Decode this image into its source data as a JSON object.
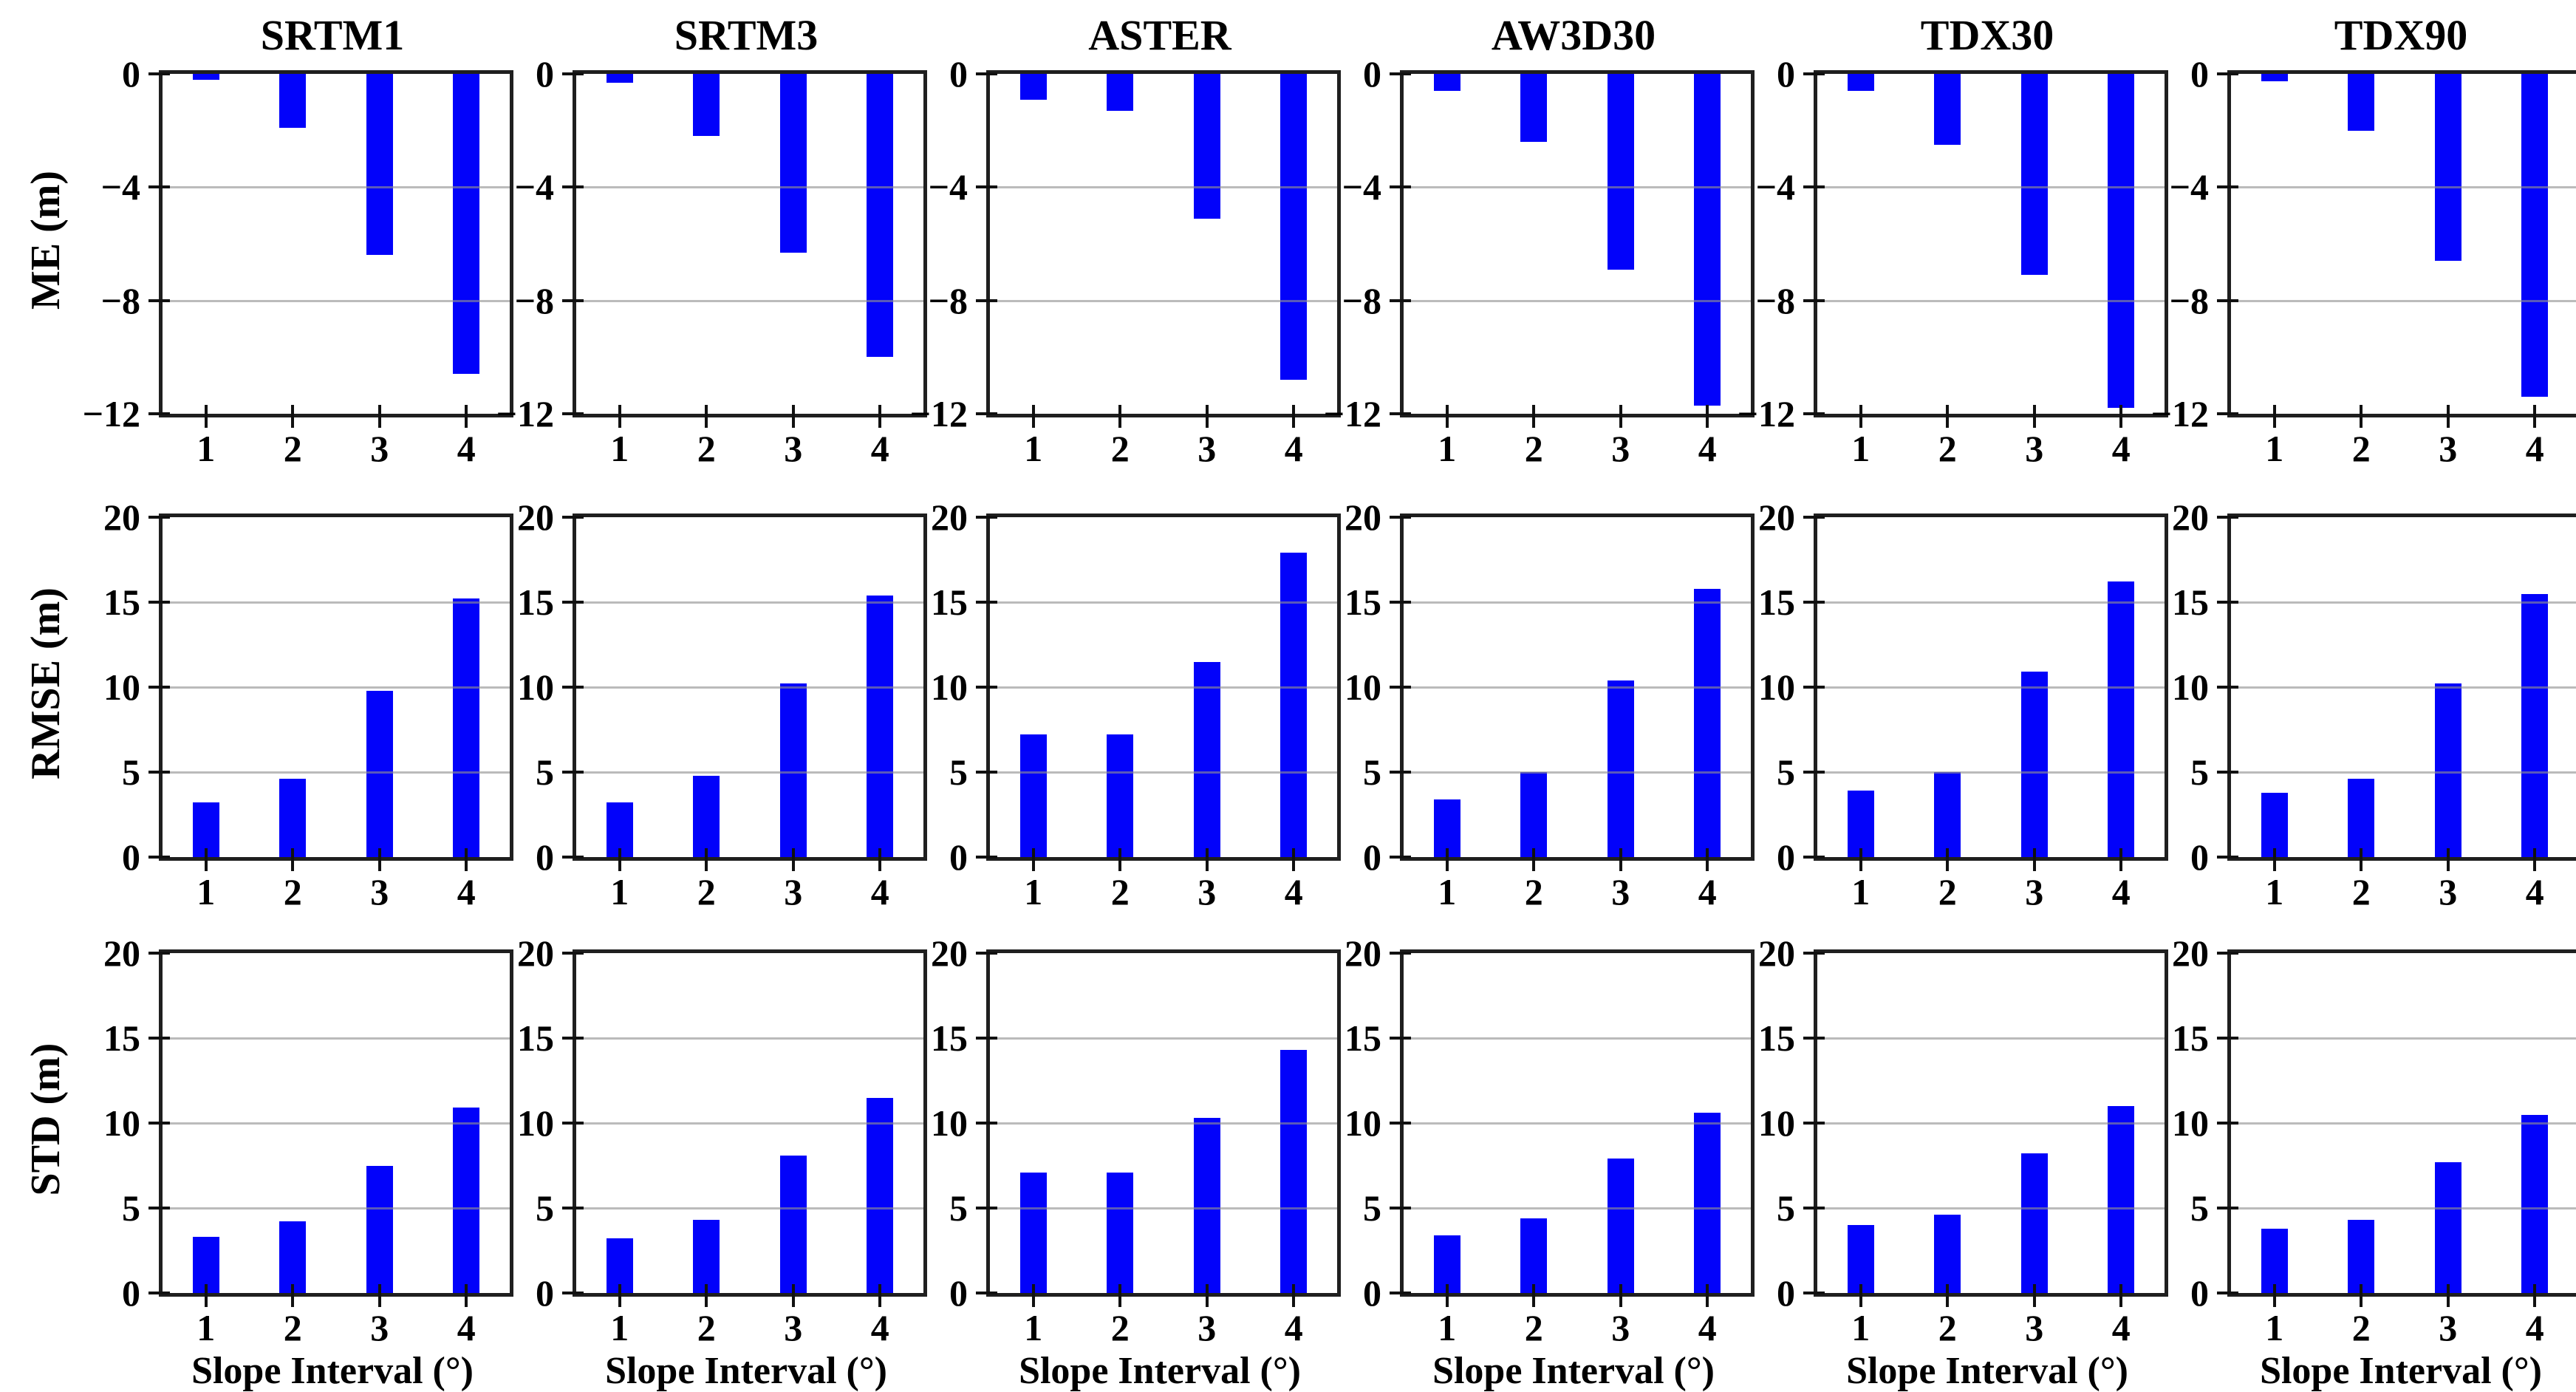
{
  "figure": {
    "background": "#ffffff",
    "bar_color": "#0202fa",
    "grid_color": "#a9a9a9",
    "axis_color": "#1f1f1f",
    "text_color": "#000000",
    "columns": [
      "SRTM1",
      "SRTM3",
      "ASTER",
      "AW3D30",
      "TDX30",
      "TDX90"
    ],
    "row_metrics": [
      "ME (m)",
      "RMSE (m)",
      "STD (m)"
    ],
    "xlabel": "Slope Interval (°)",
    "xticklabels": [
      "1",
      "2",
      "3",
      "4"
    ]
  },
  "chart_data": [
    {
      "type": "bar",
      "metric": "ME",
      "ylabel": "ME (m)",
      "ylim": [
        -12,
        0
      ],
      "yticks": [
        0,
        -4,
        -8,
        -12
      ],
      "yticklabels": [
        "0",
        "−4",
        "−8",
        "−12"
      ],
      "gridlines": [
        -4,
        -8
      ],
      "grid": true,
      "legend": "none",
      "categories": [
        "1",
        "2",
        "3",
        "4"
      ],
      "series": [
        {
          "name": "SRTM1",
          "values": [
            -0.2,
            -1.9,
            -6.4,
            -10.6
          ]
        },
        {
          "name": "SRTM3",
          "values": [
            -0.3,
            -2.2,
            -6.3,
            -10.0
          ]
        },
        {
          "name": "ASTER",
          "values": [
            -0.9,
            -1.3,
            -5.1,
            -10.8
          ]
        },
        {
          "name": "AW3D30",
          "values": [
            -0.6,
            -2.4,
            -6.9,
            -11.7
          ]
        },
        {
          "name": "TDX30",
          "values": [
            -0.6,
            -2.5,
            -7.1,
            -11.8
          ]
        },
        {
          "name": "TDX90",
          "values": [
            -0.25,
            -2.0,
            -6.6,
            -11.4
          ]
        }
      ]
    },
    {
      "type": "bar",
      "metric": "RMSE",
      "ylabel": "RMSE (m)",
      "ylim": [
        0,
        20
      ],
      "yticks": [
        0,
        5,
        10,
        15,
        20
      ],
      "yticklabels": [
        "0",
        "5",
        "10",
        "15",
        "20"
      ],
      "gridlines": [
        5,
        10,
        15
      ],
      "grid": true,
      "legend": "none",
      "categories": [
        "1",
        "2",
        "3",
        "4"
      ],
      "series": [
        {
          "name": "SRTM1",
          "values": [
            3.2,
            4.6,
            9.8,
            15.2
          ]
        },
        {
          "name": "SRTM3",
          "values": [
            3.2,
            4.8,
            10.2,
            15.4
          ]
        },
        {
          "name": "ASTER",
          "values": [
            7.2,
            7.2,
            11.5,
            17.9
          ]
        },
        {
          "name": "AW3D30",
          "values": [
            3.4,
            5.0,
            10.4,
            15.8
          ]
        },
        {
          "name": "TDX30",
          "values": [
            3.9,
            5.0,
            10.9,
            16.2
          ]
        },
        {
          "name": "TDX90",
          "values": [
            3.8,
            4.6,
            10.2,
            15.5
          ]
        }
      ]
    },
    {
      "type": "bar",
      "metric": "STD",
      "ylabel": "STD (m)",
      "ylim": [
        0,
        20
      ],
      "yticks": [
        0,
        5,
        10,
        15,
        20
      ],
      "yticklabels": [
        "0",
        "5",
        "10",
        "15",
        "20"
      ],
      "gridlines": [
        5,
        10,
        15
      ],
      "grid": true,
      "legend": "none",
      "categories": [
        "1",
        "2",
        "3",
        "4"
      ],
      "series": [
        {
          "name": "SRTM1",
          "values": [
            3.3,
            4.2,
            7.5,
            10.9
          ]
        },
        {
          "name": "SRTM3",
          "values": [
            3.2,
            4.3,
            8.1,
            11.5
          ]
        },
        {
          "name": "ASTER",
          "values": [
            7.1,
            7.1,
            10.3,
            14.3
          ]
        },
        {
          "name": "AW3D30",
          "values": [
            3.4,
            4.4,
            7.9,
            10.6
          ]
        },
        {
          "name": "TDX30",
          "values": [
            4.0,
            4.6,
            8.2,
            11.0
          ]
        },
        {
          "name": "TDX90",
          "values": [
            3.8,
            4.3,
            7.7,
            10.5
          ]
        }
      ]
    }
  ]
}
